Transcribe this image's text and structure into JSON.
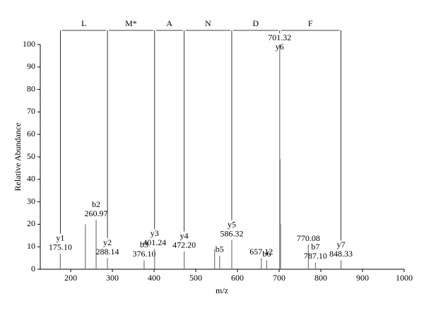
{
  "chart_data": {
    "type": "bar",
    "x": [
      175.1,
      235.1,
      260.97,
      288.14,
      376.1,
      401.24,
      472.2,
      545.2,
      557.2,
      586.32,
      657.12,
      670.1,
      701.32,
      702.32,
      703.32,
      770.08,
      787.1,
      848.33
    ],
    "values": [
      7,
      20,
      22,
      5,
      4,
      9,
      8,
      9,
      6,
      13,
      5,
      4,
      100,
      49,
      20,
      11,
      3,
      4
    ],
    "value_labels": [
      "175.10",
      null,
      "260.97",
      "288.14",
      "376.10",
      "401.24",
      "472.20",
      null,
      null,
      "586.32",
      "657.12",
      null,
      "701.32",
      null,
      null,
      "770.08",
      "787.10",
      "848.33"
    ],
    "ions": [
      "y1",
      null,
      "b2",
      "y2",
      "b3",
      "y3",
      "y4",
      null,
      "b5",
      "y5",
      null,
      "b6",
      "y6",
      null,
      null,
      null,
      "b7",
      "y7"
    ],
    "sequence": [
      "L",
      "M*",
      "A",
      "N",
      "D",
      "F"
    ],
    "xlabel": "m/z",
    "ylabel": "Relative Abundance",
    "xlim": [
      127,
      1000
    ],
    "ylim": [
      0,
      100
    ],
    "xticks": [
      200,
      300,
      400,
      500,
      600,
      700,
      800,
      900,
      1000
    ],
    "yticks": [
      0,
      10,
      20,
      30,
      40,
      50,
      60,
      70,
      80,
      90,
      100
    ],
    "color": "#777777"
  }
}
